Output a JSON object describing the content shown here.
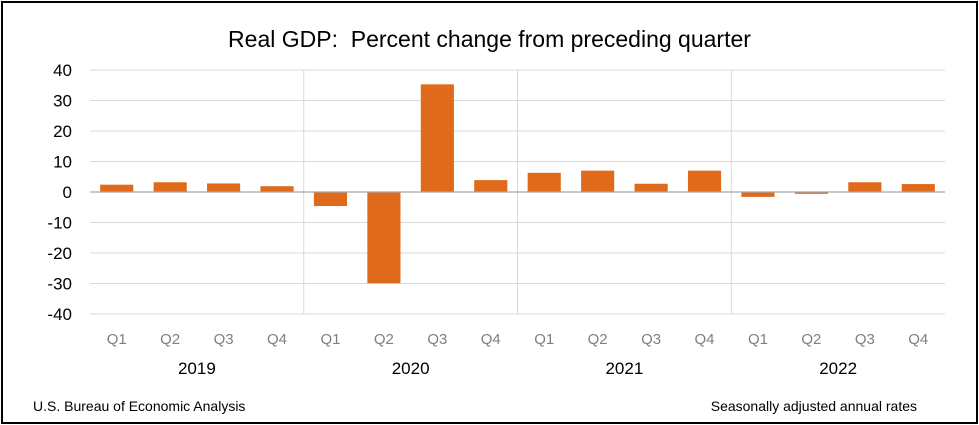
{
  "chart_data": {
    "type": "bar",
    "title": "Real GDP:  Percent change from preceding quarter",
    "categories": [
      "Q1",
      "Q2",
      "Q3",
      "Q4",
      "Q1",
      "Q2",
      "Q3",
      "Q4",
      "Q1",
      "Q2",
      "Q3",
      "Q4",
      "Q1",
      "Q2",
      "Q3",
      "Q4"
    ],
    "groups": [
      "2019",
      "2020",
      "2021",
      "2022"
    ],
    "values": [
      2.4,
      3.2,
      2.8,
      1.9,
      -4.6,
      -29.9,
      35.3,
      3.9,
      6.3,
      7.0,
      2.7,
      7.0,
      -1.6,
      -0.6,
      3.2,
      2.6
    ],
    "ylim": [
      -40,
      40
    ],
    "yticks": [
      40,
      30,
      20,
      10,
      0,
      -10,
      -20,
      -30,
      -40
    ],
    "grid": true,
    "bar_color": "#e06a1b",
    "xlabel": "",
    "ylabel": ""
  },
  "footer": {
    "source": "U.S. Bureau of Economic Analysis",
    "note": "Seasonally adjusted annual rates"
  }
}
